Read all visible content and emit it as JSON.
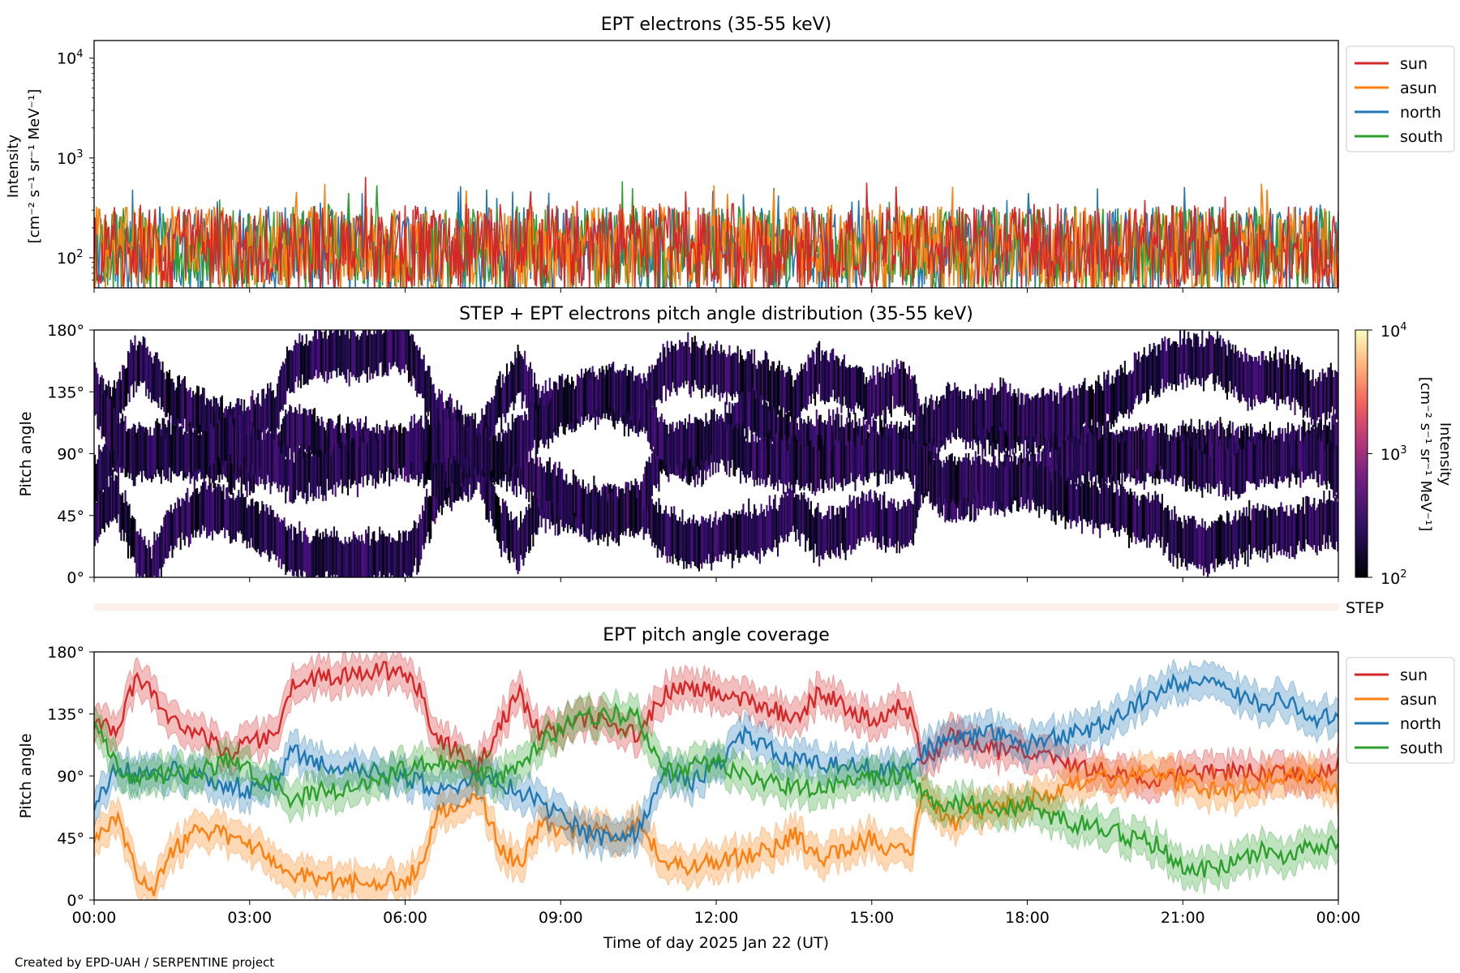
{
  "figure": {
    "footer": "Created by EPD-UAH / SERPENTINE project",
    "xlabel": "Time of day 2025 Jan 22 (UT)",
    "time_ticks": [
      "00:00",
      "03:00",
      "06:00",
      "09:00",
      "12:00",
      "15:00",
      "18:00",
      "21:00",
      "00:00"
    ]
  },
  "colors": {
    "sun": "#d62728",
    "asun": "#ff7f0e",
    "north": "#1f77b4",
    "south": "#2ca02c",
    "step_bar": "#fdf0ea",
    "heat_low": "#000004",
    "heat_high": "#fcffa4"
  },
  "chart_data": [
    {
      "type": "line",
      "title": "EPT electrons (35-55 keV)",
      "ylabel_line1": "Intensity",
      "ylabel_line2": "[cm⁻² s⁻¹ sr⁻¹ MeV⁻¹]",
      "yscale": "log",
      "ylim": [
        50,
        15000
      ],
      "yticks": [
        {
          "value": 100,
          "base": "10",
          "exp": "2"
        },
        {
          "value": 1000,
          "base": "10",
          "exp": "3"
        },
        {
          "value": 10000,
          "base": "10",
          "exp": "4"
        }
      ],
      "xlim_hours": [
        0,
        24
      ],
      "legend_position": "upper right (outside)",
      "series": [
        {
          "name": "sun",
          "color_key": "sun",
          "typical_range": [
            50,
            350
          ],
          "peak": 650
        },
        {
          "name": "asun",
          "color_key": "asun",
          "typical_range": [
            50,
            330
          ],
          "peak": 560
        },
        {
          "name": "north",
          "color_key": "north",
          "typical_range": [
            50,
            330
          ],
          "peak": 520
        },
        {
          "name": "south",
          "color_key": "south",
          "typical_range": [
            50,
            330
          ],
          "peak": 600
        }
      ]
    },
    {
      "type": "heatmap",
      "title": "STEP + EPT electrons pitch angle distribution (35-55 keV)",
      "ylabel": "Pitch angle",
      "ylim": [
        0,
        180
      ],
      "yticks": [
        "0°",
        "45°",
        "90°",
        "135°",
        "180°"
      ],
      "xlim_hours": [
        0,
        24
      ],
      "colorbar": {
        "label_line1": "Intensity",
        "label_line2": "[cm⁻² s⁻¹ sr⁻¹ MeV⁻¹]",
        "scale": "log",
        "range": [
          100,
          10000
        ],
        "ticks": [
          {
            "base": "10",
            "exp": "2"
          },
          {
            "base": "10",
            "exp": "3"
          },
          {
            "base": "10",
            "exp": "4"
          }
        ]
      },
      "typical_intensity": [
        100,
        300
      ]
    },
    {
      "type": "bar",
      "label": "STEP",
      "note": "STEP coverage strip"
    },
    {
      "type": "line",
      "title": "EPT pitch angle coverage",
      "ylabel": "Pitch angle",
      "ylim": [
        0,
        180
      ],
      "yticks": [
        "0°",
        "45°",
        "90°",
        "135°",
        "180°"
      ],
      "xlim_hours": [
        0,
        24
      ],
      "legend_position": "upper right (outside)",
      "band_halfwidth_deg": 12,
      "series": [
        {
          "name": "sun",
          "color_key": "sun",
          "points": [
            [
              0,
              130
            ],
            [
              0.4,
              122
            ],
            [
              0.8,
              158
            ],
            [
              1.1,
              150
            ],
            [
              1.5,
              128
            ],
            [
              2.0,
              120
            ],
            [
              2.5,
              108
            ],
            [
              3.0,
              112
            ],
            [
              3.5,
              122
            ],
            [
              3.8,
              155
            ],
            [
              4.3,
              162
            ],
            [
              5.0,
              163
            ],
            [
              5.5,
              166
            ],
            [
              6.0,
              166
            ],
            [
              6.3,
              150
            ],
            [
              6.6,
              115
            ],
            [
              7.0,
              108
            ],
            [
              7.4,
              95
            ],
            [
              7.8,
              125
            ],
            [
              8.2,
              150
            ],
            [
              8.6,
              120
            ],
            [
              9.0,
              125
            ],
            [
              9.5,
              132
            ],
            [
              10.0,
              130
            ],
            [
              10.5,
              120
            ],
            [
              11.0,
              150
            ],
            [
              11.5,
              155
            ],
            [
              12.0,
              150
            ],
            [
              12.5,
              145
            ],
            [
              13.0,
              140
            ],
            [
              13.5,
              130
            ],
            [
              14.0,
              150
            ],
            [
              14.5,
              140
            ],
            [
              15.0,
              130
            ],
            [
              15.5,
              142
            ],
            [
              15.8,
              135
            ],
            [
              16.0,
              95
            ],
            [
              16.5,
              120
            ],
            [
              17.0,
              112
            ],
            [
              17.5,
              108
            ],
            [
              18.0,
              110
            ],
            [
              18.5,
              105
            ],
            [
              19.0,
              95
            ],
            [
              19.5,
              93
            ],
            [
              20.0,
              88
            ],
            [
              20.5,
              86
            ],
            [
              21.0,
              95
            ],
            [
              21.5,
              92
            ],
            [
              22.0,
              93
            ],
            [
              22.5,
              92
            ],
            [
              23.0,
              90
            ],
            [
              23.5,
              92
            ],
            [
              24,
              100
            ]
          ]
        },
        {
          "name": "asun",
          "color_key": "asun",
          "points": [
            [
              0,
              40
            ],
            [
              0.4,
              62
            ],
            [
              0.8,
              22
            ],
            [
              1.1,
              5
            ],
            [
              1.5,
              35
            ],
            [
              2.0,
              50
            ],
            [
              2.5,
              48
            ],
            [
              3.0,
              40
            ],
            [
              3.5,
              30
            ],
            [
              3.8,
              18
            ],
            [
              4.3,
              15
            ],
            [
              5.0,
              12
            ],
            [
              5.5,
              14
            ],
            [
              6.0,
              12
            ],
            [
              6.3,
              28
            ],
            [
              6.6,
              62
            ],
            [
              7.0,
              72
            ],
            [
              7.4,
              80
            ],
            [
              7.8,
              40
            ],
            [
              8.2,
              25
            ],
            [
              8.6,
              55
            ],
            [
              9.0,
              50
            ],
            [
              9.5,
              50
            ],
            [
              10.0,
              48
            ],
            [
              10.5,
              55
            ],
            [
              11.0,
              30
            ],
            [
              11.5,
              25
            ],
            [
              12.0,
              28
            ],
            [
              12.5,
              32
            ],
            [
              13.0,
              35
            ],
            [
              13.5,
              48
            ],
            [
              14.0,
              30
            ],
            [
              14.5,
              35
            ],
            [
              15.0,
              45
            ],
            [
              15.5,
              35
            ],
            [
              15.8,
              40
            ],
            [
              16.0,
              80
            ],
            [
              16.5,
              55
            ],
            [
              17.0,
              65
            ],
            [
              17.5,
              68
            ],
            [
              18.0,
              72
            ],
            [
              18.5,
              78
            ],
            [
              19.0,
              85
            ],
            [
              19.5,
              88
            ],
            [
              20.0,
              90
            ],
            [
              20.5,
              92
            ],
            [
              21.0,
              85
            ],
            [
              21.5,
              80
            ],
            [
              22.0,
              78
            ],
            [
              22.5,
              85
            ],
            [
              23.0,
              88
            ],
            [
              23.5,
              90
            ],
            [
              24,
              76
            ]
          ]
        },
        {
          "name": "north",
          "color_key": "north",
          "points": [
            [
              0,
              70
            ],
            [
              0.4,
              95
            ],
            [
              0.8,
              92
            ],
            [
              1.1,
              90
            ],
            [
              1.5,
              95
            ],
            [
              2.0,
              88
            ],
            [
              2.5,
              85
            ],
            [
              3.0,
              80
            ],
            [
              3.5,
              88
            ],
            [
              3.8,
              108
            ],
            [
              4.3,
              100
            ],
            [
              5.0,
              95
            ],
            [
              5.5,
              92
            ],
            [
              6.0,
              90
            ],
            [
              6.3,
              85
            ],
            [
              6.6,
              80
            ],
            [
              7.0,
              82
            ],
            [
              7.4,
              90
            ],
            [
              7.8,
              85
            ],
            [
              8.2,
              80
            ],
            [
              8.6,
              70
            ],
            [
              9.0,
              62
            ],
            [
              9.5,
              48
            ],
            [
              10.0,
              45
            ],
            [
              10.5,
              50
            ],
            [
              11.0,
              95
            ],
            [
              11.5,
              85
            ],
            [
              12.0,
              95
            ],
            [
              12.5,
              120
            ],
            [
              13.0,
              110
            ],
            [
              13.5,
              100
            ],
            [
              14.0,
              98
            ],
            [
              14.5,
              100
            ],
            [
              15.0,
              95
            ],
            [
              15.5,
              92
            ],
            [
              15.8,
              95
            ],
            [
              16.0,
              108
            ],
            [
              16.5,
              120
            ],
            [
              17.0,
              118
            ],
            [
              17.5,
              122
            ],
            [
              18.0,
              112
            ],
            [
              18.5,
              118
            ],
            [
              19.0,
              122
            ],
            [
              19.5,
              128
            ],
            [
              20.0,
              138
            ],
            [
              20.5,
              152
            ],
            [
              21.0,
              158
            ],
            [
              21.5,
              160
            ],
            [
              22.0,
              150
            ],
            [
              22.5,
              142
            ],
            [
              23.0,
              145
            ],
            [
              23.5,
              130
            ],
            [
              24,
              135
            ]
          ]
        },
        {
          "name": "south",
          "color_key": "south",
          "points": [
            [
              0,
              135
            ],
            [
              0.4,
              100
            ],
            [
              0.8,
              88
            ],
            [
              1.1,
              92
            ],
            [
              1.5,
              90
            ],
            [
              2.0,
              92
            ],
            [
              2.5,
              100
            ],
            [
              3.0,
              95
            ],
            [
              3.5,
              82
            ],
            [
              3.8,
              72
            ],
            [
              4.3,
              78
            ],
            [
              5.0,
              82
            ],
            [
              5.5,
              88
            ],
            [
              6.0,
              95
            ],
            [
              6.3,
              98
            ],
            [
              6.6,
              100
            ],
            [
              7.0,
              102
            ],
            [
              7.4,
              92
            ],
            [
              7.8,
              88
            ],
            [
              8.2,
              100
            ],
            [
              8.6,
              112
            ],
            [
              9.0,
              125
            ],
            [
              9.5,
              132
            ],
            [
              10.0,
              135
            ],
            [
              10.5,
              132
            ],
            [
              11.0,
              92
            ],
            [
              11.5,
              98
            ],
            [
              12.0,
              100
            ],
            [
              12.5,
              90
            ],
            [
              13.0,
              85
            ],
            [
              13.5,
              82
            ],
            [
              14.0,
              80
            ],
            [
              14.5,
              85
            ],
            [
              15.0,
              88
            ],
            [
              15.5,
              90
            ],
            [
              15.8,
              88
            ],
            [
              16.0,
              75
            ],
            [
              16.5,
              68
            ],
            [
              17.0,
              70
            ],
            [
              17.5,
              65
            ],
            [
              18.0,
              70
            ],
            [
              18.5,
              60
            ],
            [
              19.0,
              55
            ],
            [
              19.5,
              52
            ],
            [
              20.0,
              45
            ],
            [
              20.5,
              40
            ],
            [
              21.0,
              25
            ],
            [
              21.5,
              22
            ],
            [
              22.0,
              28
            ],
            [
              22.5,
              35
            ],
            [
              23.0,
              32
            ],
            [
              23.5,
              38
            ],
            [
              24,
              40
            ]
          ]
        }
      ]
    }
  ]
}
